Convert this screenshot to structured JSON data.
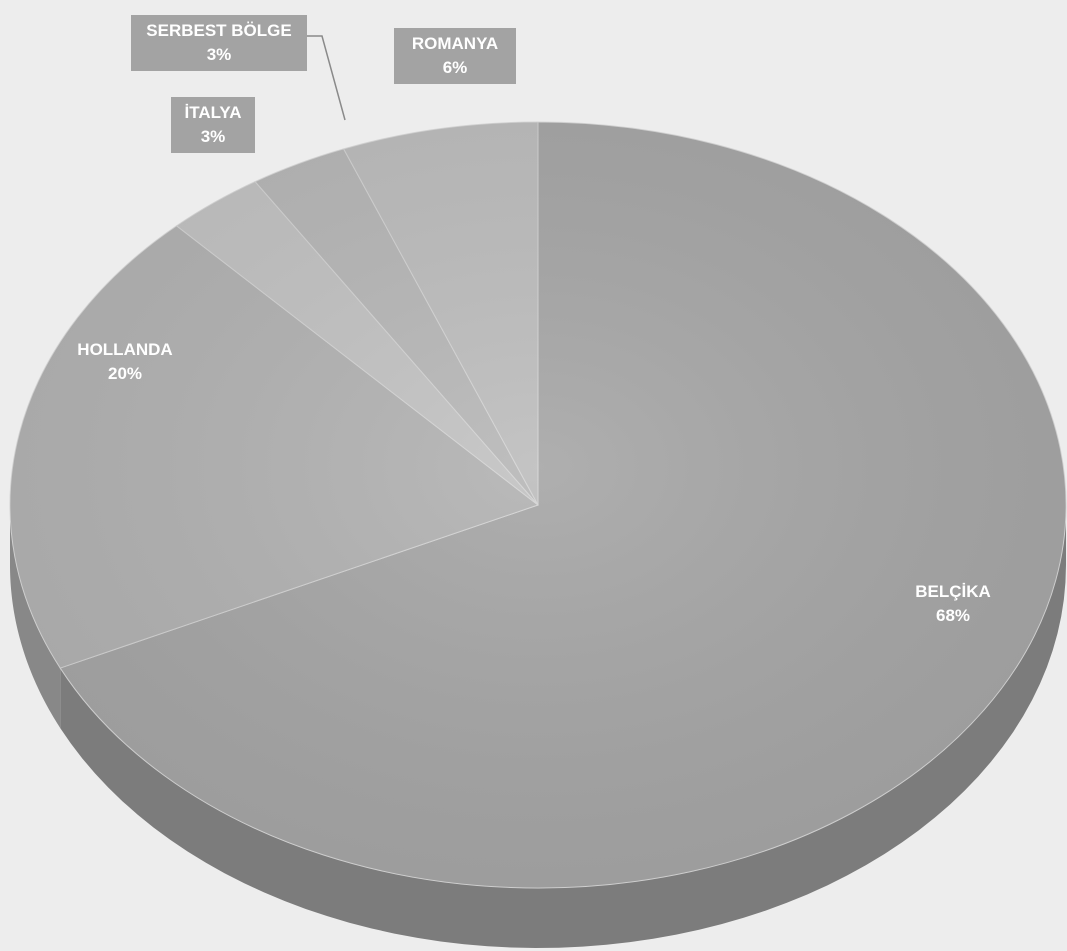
{
  "chart_data": {
    "type": "pie",
    "title": "",
    "legend": "none",
    "slices": [
      {
        "label": "BELÇİKA",
        "value": 68,
        "value_label": "68%",
        "color": "#a6a6a6",
        "side_color": "#7c7c7c"
      },
      {
        "label": "HOLLANDA",
        "value": 20,
        "value_label": "20%",
        "color": "#b2b2b2",
        "side_color": "#888888"
      },
      {
        "label": "İTALYA",
        "value": 3,
        "value_label": "3%",
        "color": "#c2c2c2",
        "side_color": "#979797"
      },
      {
        "label": "SERBEST BÖLGE",
        "value": 3,
        "value_label": "3%",
        "color": "#b7b7b7",
        "side_color": "#8f8f8f"
      },
      {
        "label": "ROMANYA",
        "value": 6,
        "value_label": "6%",
        "color": "#bdbdbd",
        "side_color": "#929292"
      }
    ],
    "label_style": {
      "boxed_color": "#ffffff",
      "box_fill": "#a3a3a3",
      "plain_color": "#ffffff"
    }
  }
}
